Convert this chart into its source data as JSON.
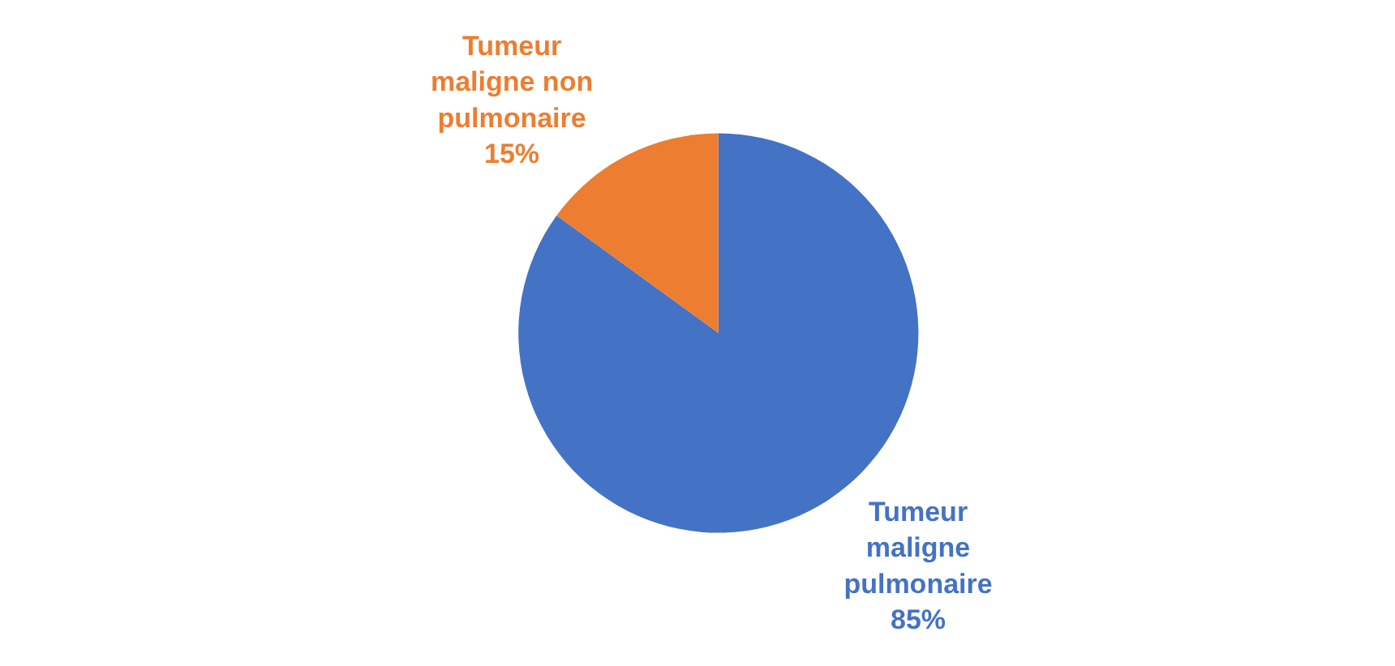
{
  "chart_data": {
    "type": "pie",
    "categories": [
      "Tumeur maligne pulmonaire",
      "Tumeur maligne non pulmonaire"
    ],
    "values": [
      85,
      15
    ],
    "value_labels": [
      "85%",
      "15%"
    ],
    "colors": [
      "#4472c4",
      "#ed7d31"
    ],
    "legend": false
  }
}
